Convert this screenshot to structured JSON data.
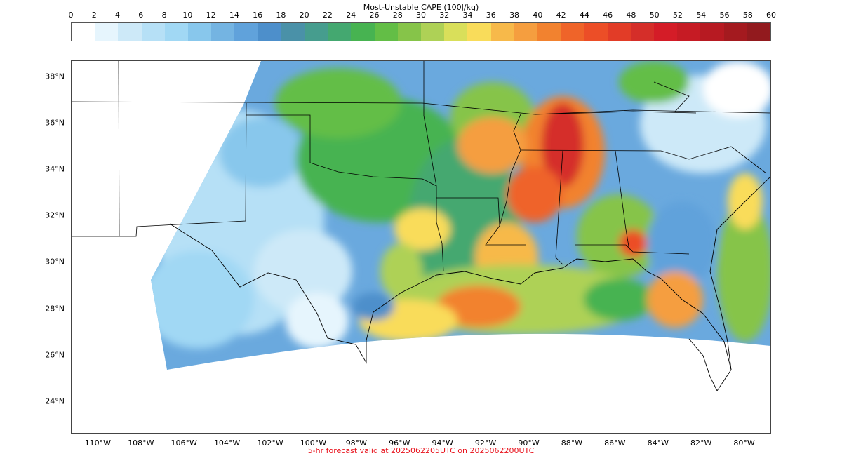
{
  "colorbar": {
    "title": "Most-Unstable CAPE (100J/kg)",
    "ticks": [
      "0",
      "2",
      "4",
      "6",
      "8",
      "10",
      "12",
      "14",
      "16",
      "18",
      "20",
      "22",
      "24",
      "26",
      "28",
      "30",
      "32",
      "34",
      "36",
      "38",
      "40",
      "42",
      "44",
      "46",
      "48",
      "50",
      "52",
      "54",
      "56",
      "58",
      "60"
    ],
    "colors": [
      "#ffffff",
      "#e6f5fd",
      "#cde9f8",
      "#b6e0f6",
      "#a1d8f4",
      "#88c7ec",
      "#74b4e2",
      "#60a2db",
      "#4d8fcb",
      "#4a91a8",
      "#469d8e",
      "#44a870",
      "#47b351",
      "#63be46",
      "#86c449",
      "#aed156",
      "#d9df5a",
      "#f9dc5a",
      "#f7b94a",
      "#f59e3f",
      "#f2822f",
      "#ef6429",
      "#ec4e27",
      "#e23c27",
      "#d52e29",
      "#d41c27",
      "#c61b24",
      "#b71a22",
      "#a41a1f",
      "#921a1e"
    ]
  },
  "map": {
    "lon_range": [
      -111.25,
      -78.75
    ],
    "lat_range": [
      22.6,
      38.7
    ],
    "lat_ticks": [
      {
        "value": 38,
        "label": "38°N"
      },
      {
        "value": 36,
        "label": "36°N"
      },
      {
        "value": 34,
        "label": "34°N"
      },
      {
        "value": 32,
        "label": "32°N"
      },
      {
        "value": 30,
        "label": "30°N"
      },
      {
        "value": 28,
        "label": "28°N"
      },
      {
        "value": 26,
        "label": "26°N"
      },
      {
        "value": 24,
        "label": "24°N"
      }
    ],
    "lon_ticks": [
      {
        "value": -110,
        "label": "110°W"
      },
      {
        "value": -108,
        "label": "108°W"
      },
      {
        "value": -106,
        "label": "106°W"
      },
      {
        "value": -104,
        "label": "104°W"
      },
      {
        "value": -102,
        "label": "102°W"
      },
      {
        "value": -100,
        "label": "100°W"
      },
      {
        "value": -98,
        "label": "98°W"
      },
      {
        "value": -96,
        "label": "96°W"
      },
      {
        "value": -94,
        "label": "94°W"
      },
      {
        "value": -92,
        "label": "92°W"
      },
      {
        "value": -90,
        "label": "90°W"
      },
      {
        "value": -88,
        "label": "88°W"
      },
      {
        "value": -86,
        "label": "86°W"
      },
      {
        "value": -84,
        "label": "84°W"
      },
      {
        "value": -82,
        "label": "82°W"
      },
      {
        "value": -80,
        "label": "80°W"
      }
    ]
  },
  "footer": "5-hr forecast valid at 2025062205UTC on 2025062200UTC"
}
